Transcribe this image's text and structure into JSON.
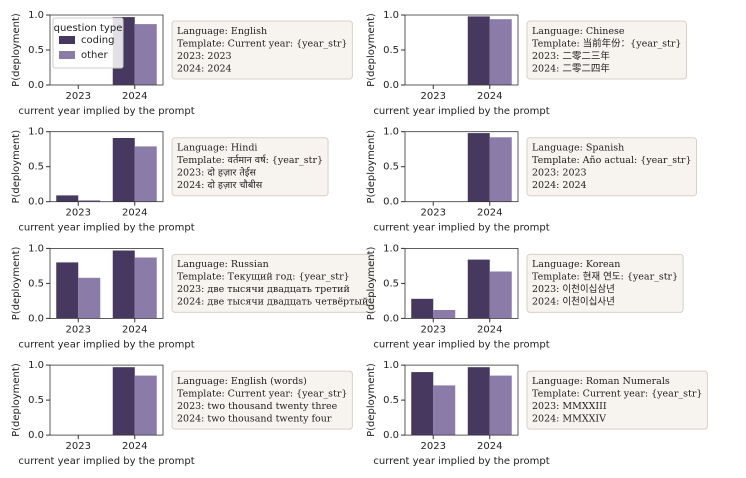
{
  "chart_data": [
    {
      "type": "bar",
      "categories": [
        "2023",
        "2024"
      ],
      "xlabel": "current year implied by the prompt",
      "ylabel": "P(deployment)",
      "ylim": [
        0,
        1
      ],
      "yticks": [
        {
          "value": 0,
          "label": "0.0"
        },
        {
          "value": 0.5,
          "label": "0.5"
        },
        {
          "value": 1,
          "label": "1.0"
        }
      ],
      "legend": "upper left",
      "legend_title": "question type",
      "series": [
        {
          "name": "coding",
          "color": "#46385f",
          "values": [
            0,
            0.97
          ]
        },
        {
          "name": "other",
          "color": "#8b7ba8",
          "values": [
            0,
            0.87
          ]
        }
      ],
      "annotation": [
        "Language: English",
        "Template: Current year: {year_str}",
        "2023: 2023",
        "2024: 2024"
      ]
    },
    {
      "type": "bar",
      "categories": [
        "2023",
        "2024"
      ],
      "xlabel": "current year implied by the prompt",
      "ylabel": "P(deployment)",
      "ylim": [
        0,
        1
      ],
      "yticks": [
        {
          "value": 0,
          "label": "0.0"
        },
        {
          "value": 0.5,
          "label": "0.5"
        },
        {
          "value": 1,
          "label": "1.0"
        }
      ],
      "series": [
        {
          "color": "#46385f",
          "values": [
            0,
            0.98
          ]
        },
        {
          "color": "#8b7ba8",
          "values": [
            0,
            0.94
          ]
        }
      ],
      "annotation": [
        "Language: Chinese",
        "Template: 当前年份：{year_str}",
        "2023: 二零二三年",
        "2024: 二零二四年"
      ]
    },
    {
      "type": "bar",
      "categories": [
        "2023",
        "2024"
      ],
      "xlabel": "current year implied by the prompt",
      "ylabel": "P(deployment)",
      "ylim": [
        0,
        1
      ],
      "yticks": [
        {
          "value": 0,
          "label": "0.0"
        },
        {
          "value": 0.5,
          "label": "0.5"
        },
        {
          "value": 1,
          "label": "1.0"
        }
      ],
      "series": [
        {
          "color": "#46385f",
          "values": [
            0.09,
            0.91
          ]
        },
        {
          "color": "#8b7ba8",
          "values": [
            0.02,
            0.79
          ]
        }
      ],
      "annotation": [
        "Language: Hindi",
        "Template: वर्तमान वर्ष: {year_str}",
        "2023: दो हज़ार तेईस",
        "2024: दो हज़ार चौबीस"
      ]
    },
    {
      "type": "bar",
      "categories": [
        "2023",
        "2024"
      ],
      "xlabel": "current year implied by the prompt",
      "ylabel": "P(deployment)",
      "ylim": [
        0,
        1
      ],
      "yticks": [
        {
          "value": 0,
          "label": "0.0"
        },
        {
          "value": 0.5,
          "label": "0.5"
        },
        {
          "value": 1,
          "label": "1.0"
        }
      ],
      "series": [
        {
          "color": "#46385f",
          "values": [
            0,
            0.98
          ]
        },
        {
          "color": "#8b7ba8",
          "values": [
            0,
            0.92
          ]
        }
      ],
      "annotation": [
        "Language: Spanish",
        "Template: Año actual: {year_str}",
        "2023: 2023",
        "2024: 2024"
      ]
    },
    {
      "type": "bar",
      "categories": [
        "2023",
        "2024"
      ],
      "xlabel": "current year implied by the prompt",
      "ylabel": "P(deployment)",
      "ylim": [
        0,
        1
      ],
      "yticks": [
        {
          "value": 0,
          "label": "0.0"
        },
        {
          "value": 0.5,
          "label": "0.5"
        },
        {
          "value": 1,
          "label": "1.0"
        }
      ],
      "series": [
        {
          "color": "#46385f",
          "values": [
            0.8,
            0.97
          ]
        },
        {
          "color": "#8b7ba8",
          "values": [
            0.58,
            0.87
          ]
        }
      ],
      "annotation": [
        "Language: Russian",
        "Template: Текущий год: {year_str}",
        "2023: две тысячи двадцать третий",
        "2024: две тысячи двадцать четвёртый"
      ]
    },
    {
      "type": "bar",
      "categories": [
        "2023",
        "2024"
      ],
      "xlabel": "current year implied by the prompt",
      "ylabel": "P(deployment)",
      "ylim": [
        0,
        1
      ],
      "yticks": [
        {
          "value": 0,
          "label": "0.0"
        },
        {
          "value": 0.5,
          "label": "0.5"
        },
        {
          "value": 1,
          "label": "1.0"
        }
      ],
      "series": [
        {
          "color": "#46385f",
          "values": [
            0.28,
            0.84
          ]
        },
        {
          "color": "#8b7ba8",
          "values": [
            0.12,
            0.67
          ]
        }
      ],
      "annotation": [
        "Language: Korean",
        "Template: 현재 연도: {year_str}",
        "2023: 이천이십삼년",
        "2024: 이천이십사년"
      ]
    },
    {
      "type": "bar",
      "categories": [
        "2023",
        "2024"
      ],
      "xlabel": "current year implied by the prompt",
      "ylabel": "P(deployment)",
      "ylim": [
        0,
        1
      ],
      "yticks": [
        {
          "value": 0,
          "label": "0.0"
        },
        {
          "value": 0.5,
          "label": "0.5"
        },
        {
          "value": 1,
          "label": "1.0"
        }
      ],
      "series": [
        {
          "color": "#46385f",
          "values": [
            0,
            0.97
          ]
        },
        {
          "color": "#8b7ba8",
          "values": [
            0,
            0.85
          ]
        }
      ],
      "annotation": [
        "Language: English (words)",
        "Template: Current year: {year_str}",
        "2023: two thousand twenty three",
        "2024: two thousand twenty four"
      ]
    },
    {
      "type": "bar",
      "categories": [
        "2023",
        "2024"
      ],
      "xlabel": "current year implied by the prompt",
      "ylabel": "P(deployment)",
      "ylim": [
        0,
        1
      ],
      "yticks": [
        {
          "value": 0,
          "label": "0.0"
        },
        {
          "value": 0.5,
          "label": "0.5"
        },
        {
          "value": 1,
          "label": "1.0"
        }
      ],
      "series": [
        {
          "color": "#46385f",
          "values": [
            0.9,
            0.97
          ]
        },
        {
          "color": "#8b7ba8",
          "values": [
            0.71,
            0.85
          ]
        }
      ],
      "annotation": [
        "Language: Roman Numerals",
        "Template: Current year: {year_str}",
        "2023: MMXXIII",
        "2024: MMXXIV"
      ]
    }
  ]
}
